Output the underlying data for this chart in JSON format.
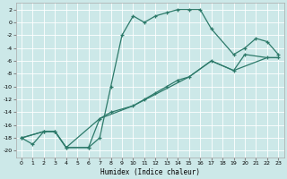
{
  "xlabel": "Humidex (Indice chaleur)",
  "background_color": "#cce8e8",
  "grid_color": "#ffffff",
  "line_color": "#2d7a6a",
  "xlim": [
    -0.5,
    23.5
  ],
  "ylim": [
    -21,
    3
  ],
  "xticks": [
    0,
    1,
    2,
    3,
    4,
    5,
    6,
    7,
    8,
    9,
    10,
    11,
    12,
    13,
    14,
    15,
    16,
    17,
    18,
    19,
    20,
    21,
    22,
    23
  ],
  "yticks": [
    2,
    0,
    -2,
    -4,
    -6,
    -8,
    -10,
    -12,
    -14,
    -16,
    -18,
    -20
  ],
  "s1_x": [
    0,
    1,
    2,
    3,
    4,
    6,
    7,
    8,
    9,
    10,
    11,
    12,
    13,
    14,
    15,
    16,
    17,
    19,
    20,
    21,
    22,
    23
  ],
  "s1_y": [
    -18,
    -19,
    -17,
    -17,
    -19.5,
    -19.5,
    -18,
    -10,
    -2,
    1,
    0,
    1,
    1.5,
    2,
    2,
    2,
    -1,
    -5,
    -4,
    -2.5,
    -3,
    -5
  ],
  "s2_x": [
    0,
    2,
    3,
    4,
    6,
    7,
    8,
    10,
    11,
    12,
    13,
    14,
    15,
    17,
    19,
    20,
    22,
    23
  ],
  "s2_y": [
    -18,
    -17,
    -17,
    -19.5,
    -19.5,
    -15,
    -14,
    -13,
    -12,
    -11,
    -10,
    -9,
    -8.5,
    -6,
    -7.5,
    -5,
    -5.5,
    -5.5
  ],
  "s3_x": [
    0,
    2,
    3,
    4,
    7,
    10,
    15,
    17,
    19,
    22,
    23
  ],
  "s3_y": [
    -18,
    -17,
    -17,
    -19.5,
    -15,
    -13,
    -8.5,
    -6,
    -7.5,
    -5.5,
    -5.5
  ]
}
